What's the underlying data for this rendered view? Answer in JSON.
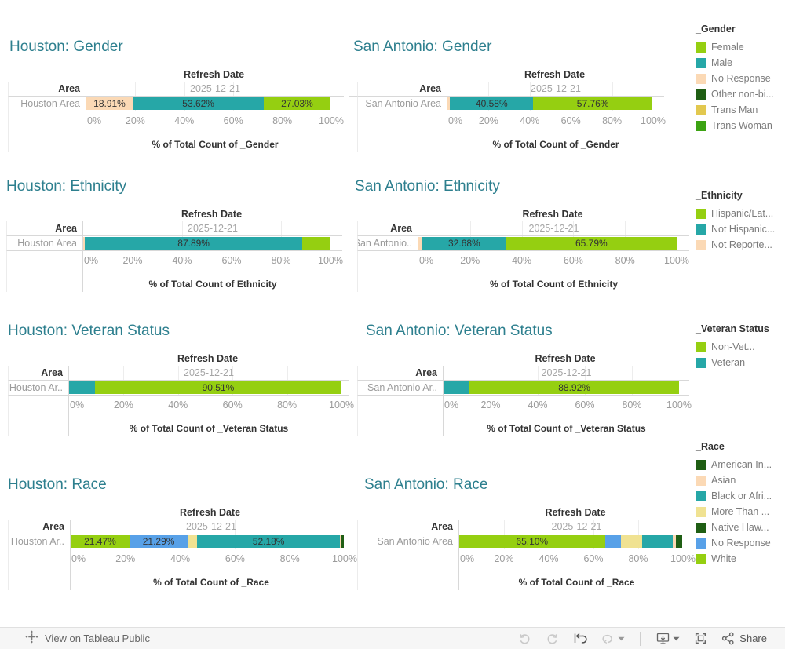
{
  "page": {
    "background": "#FFFFFF"
  },
  "colors": {
    "green": "#95CF11",
    "teal": "#26A7A7",
    "peach": "#FBD9B5",
    "darkGreen": "#1F5E14",
    "gold": "#E2C84F",
    "medGreen": "#3CA313",
    "blue": "#58A1E8",
    "lightYellow": "#F0E292",
    "title_teal": "#2D7F8E",
    "header_text": "#333333",
    "muted_text": "#9B9B9B",
    "legend_text": "#7B7B7B",
    "border": "#D8D8D8"
  },
  "axis_ticks": [
    "0%",
    "20%",
    "40%",
    "60%",
    "80%",
    "100%"
  ],
  "chart_data": [
    {
      "type": "stacked-bar",
      "title": "Houston: Gender",
      "col_header": "Refresh Date",
      "refresh_date": "2025-12-21",
      "row_header": "Area",
      "row_label": "Houston Area",
      "axis_title": "% of Total Count of _Gender",
      "xlim": [
        0,
        100
      ],
      "segments": [
        {
          "category": "No Response",
          "color": "peach",
          "value": 18.91,
          "label": "18.91%"
        },
        {
          "category": "Male",
          "color": "teal",
          "value": 53.62,
          "label": "53.62%"
        },
        {
          "category": "Female",
          "color": "green",
          "value": 27.03,
          "label": "27.03%"
        }
      ]
    },
    {
      "type": "stacked-bar",
      "title": "San Antonio: Gender",
      "col_header": "Refresh Date",
      "refresh_date": "2025-12-21",
      "row_header": "Area",
      "row_label": "San Antonio Area",
      "axis_title": "% of Total Count of _Gender",
      "xlim": [
        0,
        100
      ],
      "segments": [
        {
          "category": "No Response",
          "color": "peach",
          "value": 1.2,
          "label": ""
        },
        {
          "category": "Male",
          "color": "teal",
          "value": 40.58,
          "label": "40.58%"
        },
        {
          "category": "Female",
          "color": "green",
          "value": 57.76,
          "label": "57.76%"
        }
      ]
    },
    {
      "type": "stacked-bar",
      "title": "Houston: Ethnicity",
      "col_header": "Refresh Date",
      "refresh_date": "2025-12-21",
      "row_header": "Area",
      "row_label": "Houston Area",
      "axis_title": "% of Total Count of Ethnicity",
      "xlim": [
        0,
        100
      ],
      "segments": [
        {
          "category": "Not Reporte...",
          "color": "peach",
          "value": 0.7,
          "label": ""
        },
        {
          "category": "Not Hispanic...",
          "color": "teal",
          "value": 87.89,
          "label": "87.89%"
        },
        {
          "category": "Hispanic/Lat...",
          "color": "green",
          "value": 11.3,
          "label": ""
        }
      ]
    },
    {
      "type": "stacked-bar",
      "title": "San Antonio: Ethnicity",
      "col_header": "Refresh Date",
      "refresh_date": "2025-12-21",
      "row_header": "Area",
      "row_label": "San Antonio..",
      "axis_title": "% of Total Count of Ethnicity",
      "xlim": [
        0,
        100
      ],
      "segments": [
        {
          "category": "Not Reporte...",
          "color": "peach",
          "value": 1.4,
          "label": ""
        },
        {
          "category": "Not Hispanic...",
          "color": "teal",
          "value": 32.68,
          "label": "32.68%"
        },
        {
          "category": "Hispanic/Lat...",
          "color": "green",
          "value": 65.79,
          "label": "65.79%"
        }
      ]
    },
    {
      "type": "stacked-bar",
      "title": "Houston: Veteran Status",
      "col_header": "Refresh Date",
      "refresh_date": "2025-12-21",
      "row_header": "Area",
      "row_label": "Houston Ar..",
      "axis_title": "% of Total Count of _Veteran Status",
      "xlim": [
        0,
        100
      ],
      "segments": [
        {
          "category": "Veteran",
          "color": "teal",
          "value": 9.49,
          "label": ""
        },
        {
          "category": "Non-Vet...",
          "color": "green",
          "value": 90.51,
          "label": "90.51%"
        }
      ]
    },
    {
      "type": "stacked-bar",
      "title": "San Antonio: Veteran Status",
      "col_header": "Refresh Date",
      "refresh_date": "2025-12-21",
      "row_header": "Area",
      "row_label": "San Antonio Ar..",
      "axis_title": "% of Total Count of _Veteran Status",
      "xlim": [
        0,
        100
      ],
      "segments": [
        {
          "category": "Veteran",
          "color": "teal",
          "value": 11.08,
          "label": ""
        },
        {
          "category": "Non-Vet...",
          "color": "green",
          "value": 88.92,
          "label": "88.92%"
        }
      ]
    },
    {
      "type": "stacked-bar",
      "title": "Houston: Race",
      "col_header": "Refresh Date",
      "refresh_date": "2025-12-21",
      "row_header": "Area",
      "row_label": "Houston Ar..",
      "axis_title": "% of Total Count of _Race",
      "xlim": [
        0,
        100
      ],
      "segments": [
        {
          "category": "White",
          "color": "green",
          "value": 21.47,
          "label": "21.47%"
        },
        {
          "category": "No Response",
          "color": "blue",
          "value": 21.29,
          "label": "21.29%"
        },
        {
          "category": "More Than ...",
          "color": "lightYellow",
          "value": 3.4,
          "label": ""
        },
        {
          "category": "Black or Afri...",
          "color": "teal",
          "value": 52.18,
          "label": "52.18%"
        },
        {
          "category": "Asian",
          "color": "peach",
          "value": 0.35,
          "label": ""
        },
        {
          "category": "American In...",
          "color": "darkGreen",
          "value": 0.9,
          "label": ""
        }
      ]
    },
    {
      "type": "stacked-bar",
      "title": "San Antonio: Race",
      "col_header": "Refresh Date",
      "refresh_date": "2025-12-21",
      "row_header": "Area",
      "row_label": "San Antonio Area",
      "axis_title": "% of Total Count of _Race",
      "xlim": [
        0,
        100
      ],
      "segments": [
        {
          "category": "White",
          "color": "green",
          "value": 65.1,
          "label": "65.10%"
        },
        {
          "category": "No Response",
          "color": "blue",
          "value": 7.2,
          "label": ""
        },
        {
          "category": "More Than ...",
          "color": "lightYellow",
          "value": 9.6,
          "label": ""
        },
        {
          "category": "Black or Afri...",
          "color": "teal",
          "value": 13.4,
          "label": ""
        },
        {
          "category": "Asian",
          "color": "peach",
          "value": 1.5,
          "label": ""
        },
        {
          "category": "American In...",
          "color": "darkGreen",
          "value": 2.7,
          "label": ""
        }
      ]
    }
  ],
  "legends": [
    {
      "title": "_Gender",
      "items": [
        {
          "label": "Female",
          "color": "green"
        },
        {
          "label": "Male",
          "color": "teal"
        },
        {
          "label": "No Response",
          "color": "peach"
        },
        {
          "label": "Other non-bi...",
          "color": "darkGreen"
        },
        {
          "label": "Trans Man",
          "color": "gold"
        },
        {
          "label": "Trans Woman",
          "color": "medGreen"
        }
      ]
    },
    {
      "title": "_Ethnicity",
      "items": [
        {
          "label": "Hispanic/Lat...",
          "color": "green"
        },
        {
          "label": "Not Hispanic...",
          "color": "teal"
        },
        {
          "label": "Not Reporte...",
          "color": "peach"
        }
      ]
    },
    {
      "title": "_Veteran Status",
      "items": [
        {
          "label": "Non-Vet...",
          "color": "green"
        },
        {
          "label": "Veteran",
          "color": "teal"
        }
      ]
    },
    {
      "title": "_Race",
      "items": [
        {
          "label": "American In...",
          "color": "darkGreen"
        },
        {
          "label": "Asian",
          "color": "peach"
        },
        {
          "label": "Black or Afri...",
          "color": "teal"
        },
        {
          "label": "More Than ...",
          "color": "lightYellow"
        },
        {
          "label": "Native Haw...",
          "color": "darkGreen"
        },
        {
          "label": "No Response",
          "color": "blue"
        },
        {
          "label": "White",
          "color": "green"
        }
      ]
    }
  ],
  "toolbar": {
    "view_on_label": "View on Tableau Public",
    "share_label": "Share"
  }
}
